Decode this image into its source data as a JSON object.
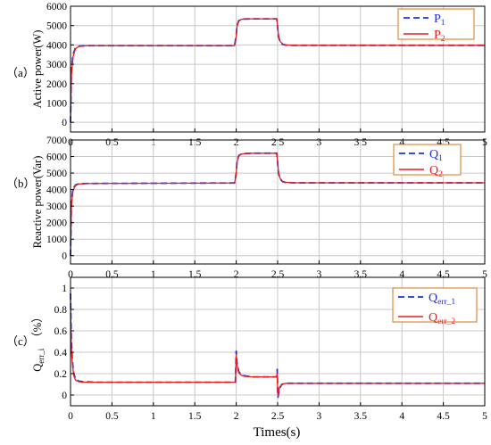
{
  "figure": {
    "xlabel": "Times(s)",
    "colors": {
      "series1": "#1f2fe0",
      "series2": "#e81c1c",
      "legend_border": "#e08a3c",
      "grid": "#c8c8c8"
    }
  },
  "chart_data": [
    {
      "type": "line",
      "panel_label": "（a）",
      "ylabel": "Active power(W)",
      "xlim": [
        0,
        5
      ],
      "ylim": [
        -500,
        6000
      ],
      "xticks": [
        "0",
        "0.5",
        "1",
        "1.5",
        "2",
        "2.5",
        "3",
        "3.5",
        "4",
        "4.5",
        "5"
      ],
      "yticks": [
        "0",
        "1000",
        "2000",
        "3000",
        "4000",
        "5000",
        "6000"
      ],
      "grid": true,
      "legend_placement": "top-right",
      "series": [
        {
          "name": "P1",
          "name_main": "P",
          "name_sub": "1",
          "style": "dashed",
          "x": [
            0,
            0.01,
            0.03,
            0.06,
            0.1,
            0.2,
            1.98,
            2.0,
            2.01,
            2.03,
            2.06,
            2.1,
            2.2,
            2.49,
            2.5,
            2.51,
            2.53,
            2.56,
            2.6,
            2.7,
            5.0
          ],
          "y": [
            0,
            2600,
            3500,
            3850,
            3940,
            3960,
            3960,
            4500,
            5000,
            5250,
            5330,
            5340,
            5350,
            5350,
            4900,
            4450,
            4150,
            4030,
            3990,
            3980,
            3980
          ]
        },
        {
          "name": "P2",
          "name_main": "P",
          "name_sub": "2",
          "style": "solid",
          "x": [
            0,
            0.01,
            0.03,
            0.06,
            0.1,
            0.2,
            1.98,
            2.0,
            2.01,
            2.03,
            2.06,
            2.1,
            2.2,
            2.49,
            2.5,
            2.51,
            2.53,
            2.56,
            2.6,
            2.7,
            5.0
          ],
          "y": [
            0,
            2400,
            3400,
            3800,
            3920,
            3960,
            3960,
            4450,
            4950,
            5220,
            5320,
            5340,
            5350,
            5350,
            4950,
            4500,
            4180,
            4050,
            4000,
            3980,
            3980
          ]
        }
      ]
    },
    {
      "type": "line",
      "panel_label": "（b）",
      "ylabel": "Reactive power(Var)",
      "xlim": [
        0,
        5
      ],
      "ylim": [
        -500,
        7000
      ],
      "xticks": [
        "0",
        "0.5",
        "1",
        "1.5",
        "2",
        "2.5",
        "3",
        "3.5",
        "4",
        "4.5",
        "5"
      ],
      "yticks": [
        "0",
        "1000",
        "2000",
        "3000",
        "4000",
        "5000",
        "6000",
        "7000"
      ],
      "grid": true,
      "legend_placement": "top-right",
      "series": [
        {
          "name": "Q1",
          "name_main": "Q",
          "name_sub": "1",
          "style": "dashed",
          "x": [
            0,
            0.01,
            0.03,
            0.06,
            0.1,
            0.2,
            1.98,
            2.0,
            2.01,
            2.03,
            2.06,
            2.1,
            2.2,
            2.49,
            2.5,
            2.51,
            2.53,
            2.56,
            2.6,
            2.7,
            5.0
          ],
          "y": [
            0,
            3200,
            4050,
            4280,
            4350,
            4370,
            4400,
            5000,
            5700,
            6050,
            6150,
            6180,
            6200,
            6200,
            5600,
            5000,
            4650,
            4480,
            4430,
            4410,
            4410
          ]
        },
        {
          "name": "Q2",
          "name_main": "Q",
          "name_sub": "2",
          "style": "solid",
          "x": [
            0,
            0.01,
            0.03,
            0.06,
            0.1,
            0.2,
            1.98,
            2.0,
            2.01,
            2.03,
            2.06,
            2.1,
            2.2,
            2.49,
            2.5,
            2.51,
            2.53,
            2.56,
            2.6,
            2.7,
            5.0
          ],
          "y": [
            0,
            3000,
            3950,
            4250,
            4340,
            4370,
            4400,
            4950,
            5650,
            6020,
            6140,
            6180,
            6200,
            6200,
            5650,
            5050,
            4680,
            4500,
            4440,
            4410,
            4410
          ]
        }
      ]
    },
    {
      "type": "line",
      "panel_label": "（c）",
      "ylabel_main": "Q",
      "ylabel_sub": "err_i",
      "ylabel_tail": "（%）",
      "xlim": [
        0,
        5
      ],
      "ylim": [
        -0.1,
        1.1
      ],
      "xticks": [
        "0",
        "0.5",
        "1",
        "1.5",
        "2",
        "2.5",
        "3",
        "3.5",
        "4",
        "4.5",
        "5"
      ],
      "yticks": [
        "0",
        "0.2",
        "0.4",
        "0.6",
        "0.8",
        "1"
      ],
      "grid": true,
      "legend_placement": "top-right",
      "series": [
        {
          "name": "Qerr_1",
          "name_main": "Q",
          "name_sub": "err_1",
          "style": "dashed",
          "x": [
            0,
            0.005,
            0.01,
            0.02,
            0.03,
            0.04,
            0.06,
            0.1,
            0.15,
            0.3,
            1.0,
            1.99,
            2.0,
            2.01,
            2.03,
            2.06,
            2.1,
            2.2,
            2.3,
            2.49,
            2.495,
            2.5,
            2.505,
            2.52,
            2.55,
            2.6,
            2.7,
            5.0
          ],
          "y": [
            0.95,
            0.7,
            0.5,
            0.35,
            0.26,
            0.2,
            0.15,
            0.13,
            0.125,
            0.12,
            0.12,
            0.12,
            0.41,
            0.3,
            0.22,
            0.19,
            0.18,
            0.17,
            0.17,
            0.17,
            0.24,
            0.05,
            -0.02,
            0.06,
            0.1,
            0.11,
            0.11,
            0.11
          ]
        },
        {
          "name": "Qerr_2",
          "name_main": "Q",
          "name_sub": "err_2",
          "style": "solid",
          "x": [
            0,
            0.005,
            0.01,
            0.02,
            0.03,
            0.04,
            0.06,
            0.1,
            0.15,
            0.3,
            1.0,
            1.99,
            2.0,
            2.01,
            2.03,
            2.06,
            2.1,
            2.2,
            2.3,
            2.49,
            2.495,
            2.5,
            2.505,
            2.52,
            2.55,
            2.6,
            2.7,
            5.0
          ],
          "y": [
            0.9,
            0.62,
            0.45,
            0.32,
            0.24,
            0.18,
            0.14,
            0.125,
            0.12,
            0.12,
            0.12,
            0.12,
            0.38,
            0.28,
            0.21,
            0.185,
            0.175,
            0.17,
            0.17,
            0.17,
            0.2,
            0.03,
            -0.01,
            0.07,
            0.1,
            0.11,
            0.11,
            0.11
          ]
        }
      ]
    }
  ]
}
